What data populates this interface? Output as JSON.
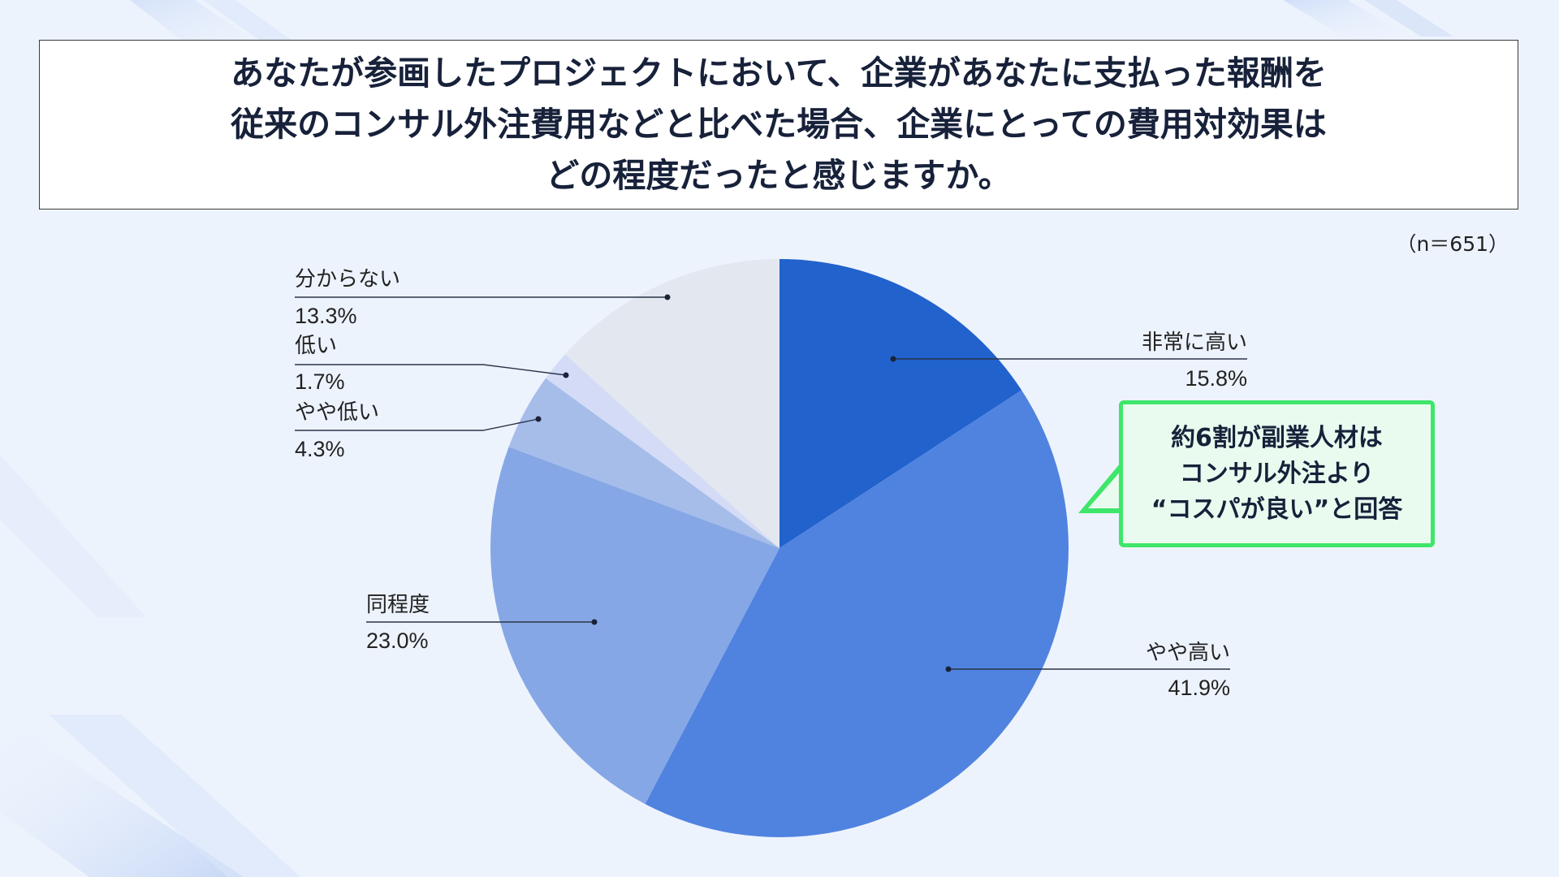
{
  "title_lines": [
    "あなたが参画したプロジェクトにおいて、企業があなたに支払った報酬を",
    "従来のコンサル外注費用などと比べた場合、企業にとっての費用対効果は",
    "どの程度だったと感じますか。"
  ],
  "sample_size": "（n＝651）",
  "callout_lines": [
    "約6割が副業人材は",
    "コンサル外注より",
    "“コスパが良い”と回答"
  ],
  "colors": {
    "background": "#edf3fd",
    "callout_border": "#3ee66a",
    "callout_fill": "#e9fbef"
  },
  "chart_data": {
    "type": "pie",
    "start": "12 o'clock",
    "direction": "clockwise",
    "slices": [
      {
        "label": "非常に高い",
        "value": 15.8,
        "value_label": "15.8%",
        "color": "#2162cc"
      },
      {
        "label": "やや高い",
        "value": 41.9,
        "value_label": "41.9%",
        "color": "#5083e0"
      },
      {
        "label": "同程度",
        "value": 23.0,
        "value_label": "23.0%",
        "color": "#86a7e5"
      },
      {
        "label": "やや低い",
        "value": 4.3,
        "value_label": "4.3%",
        "color": "#a6bdea"
      },
      {
        "label": "低い",
        "value": 1.7,
        "value_label": "1.7%",
        "color": "#d4dbf6"
      },
      {
        "label": "分からない",
        "value": 13.3,
        "value_label": "13.3%",
        "color": "#e3e7ef"
      }
    ]
  }
}
